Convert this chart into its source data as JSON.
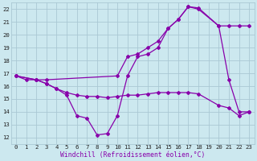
{
  "bg_color": "#cce8ef",
  "grid_color": "#aac8d4",
  "line_color": "#8800aa",
  "xlim": [
    -0.5,
    23.5
  ],
  "ylim": [
    11.5,
    22.5
  ],
  "xticks": [
    0,
    1,
    2,
    3,
    4,
    5,
    6,
    7,
    8,
    9,
    10,
    11,
    12,
    13,
    14,
    15,
    16,
    17,
    18,
    19,
    20,
    21,
    22,
    23
  ],
  "yticks": [
    12,
    13,
    14,
    15,
    16,
    17,
    18,
    19,
    20,
    21,
    22
  ],
  "line1_x": [
    0,
    1,
    2,
    3,
    4,
    5,
    6,
    7,
    8,
    9,
    10,
    11,
    12,
    13,
    14,
    15,
    16,
    17,
    18,
    20,
    21,
    22,
    23
  ],
  "line1_y": [
    16.8,
    16.5,
    16.5,
    16.2,
    15.8,
    15.5,
    15.3,
    15.2,
    15.2,
    15.1,
    15.2,
    15.3,
    15.3,
    15.4,
    15.5,
    15.5,
    15.5,
    15.5,
    15.4,
    14.5,
    14.3,
    13.7,
    14.0
  ],
  "line2_x": [
    0,
    2,
    3,
    4,
    5,
    6,
    7,
    8,
    9,
    10,
    11,
    12,
    13,
    14,
    15,
    16,
    17,
    18,
    20,
    21,
    22,
    23
  ],
  "line2_y": [
    16.8,
    16.5,
    16.2,
    15.8,
    15.3,
    13.7,
    13.5,
    12.2,
    12.3,
    13.7,
    16.8,
    18.3,
    18.5,
    19.0,
    20.5,
    21.2,
    22.2,
    22.1,
    20.7,
    16.5,
    14.0,
    14.0
  ],
  "line3_x": [
    0,
    2,
    3,
    10,
    11,
    12,
    13,
    14,
    15,
    16,
    17,
    18,
    20,
    21,
    22,
    23
  ],
  "line3_y": [
    16.8,
    16.5,
    16.5,
    16.8,
    18.3,
    18.5,
    19.0,
    19.5,
    20.5,
    21.2,
    22.2,
    22.0,
    20.7,
    20.7,
    20.7,
    20.7
  ],
  "xlabel": "Windchill (Refroidissement éolien,°C)",
  "marker": "D",
  "markersize": 2.0,
  "linewidth": 0.9,
  "tick_fontsize": 5.2,
  "label_fontsize": 5.8
}
